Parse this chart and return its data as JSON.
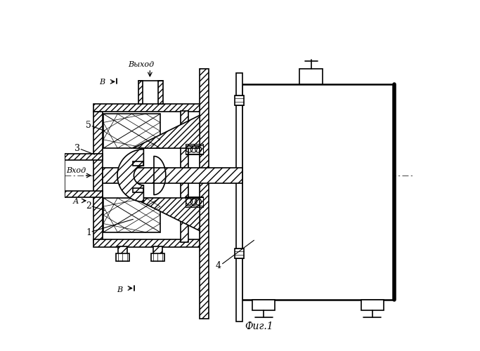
{
  "bg_color": "#ffffff",
  "line_color": "#000000",
  "fig_width": 6.83,
  "fig_height": 5.0,
  "dpi": 100,
  "title": "Фиг.1",
  "labels": {
    "vyhod": "Выход",
    "vhod": "Вход",
    "B_top": "В",
    "B_bot": "В",
    "A": "А",
    "num1": "1",
    "num2": "2",
    "num3": "3",
    "num4": "4",
    "num5": "5"
  }
}
